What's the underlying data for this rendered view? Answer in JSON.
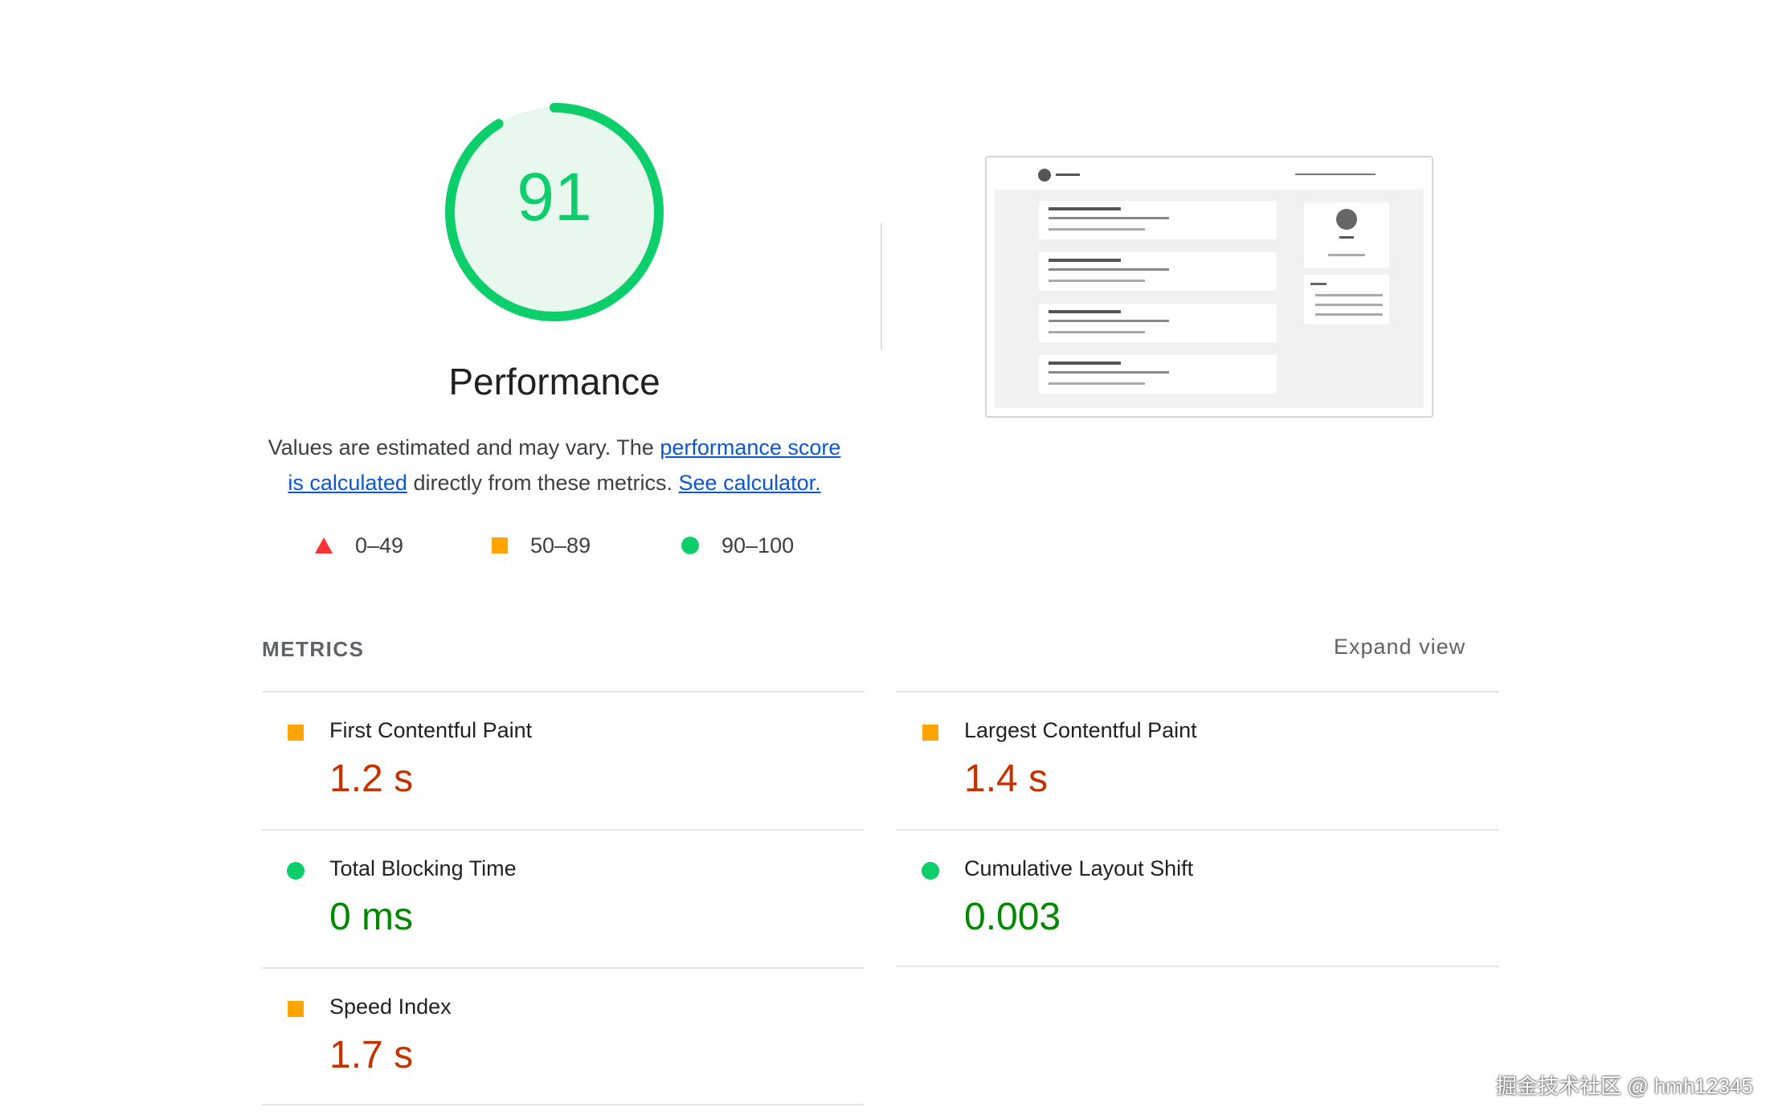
{
  "gauge": {
    "score": "91",
    "fraction": 0.91,
    "title": "Performance",
    "colors": {
      "arc": "#0cce6b",
      "fill": "#e8f8ef"
    }
  },
  "description": {
    "text_before": "Values are estimated and may vary. The ",
    "link1": "performance score",
    "line_break_link": "is calculated",
    "text_middle": " directly from these metrics. ",
    "link2": "See calculator."
  },
  "legend": [
    {
      "icon": "triangle-icon",
      "label": "0–49",
      "color": "#ff3333"
    },
    {
      "icon": "square-icon",
      "label": "50–89",
      "color": "#ffa400"
    },
    {
      "icon": "circle-icon",
      "label": "90–100",
      "color": "#0cce6b"
    }
  ],
  "metrics_header": {
    "label": "METRICS",
    "expand": "Expand view"
  },
  "metrics": [
    {
      "name": "First Contentful Paint",
      "value": "1.2 s",
      "status": "average",
      "icon": "square-icon"
    },
    {
      "name": "Largest Contentful Paint",
      "value": "1.4 s",
      "status": "average",
      "icon": "square-icon"
    },
    {
      "name": "Total Blocking Time",
      "value": "0 ms",
      "status": "pass",
      "icon": "circle-icon"
    },
    {
      "name": "Cumulative Layout Shift",
      "value": "0.003",
      "status": "pass",
      "icon": "circle-icon"
    },
    {
      "name": "Speed Index",
      "value": "1.7 s",
      "status": "average",
      "icon": "square-icon"
    }
  ],
  "watermark": "掘金技术社区 @ hmh12345"
}
